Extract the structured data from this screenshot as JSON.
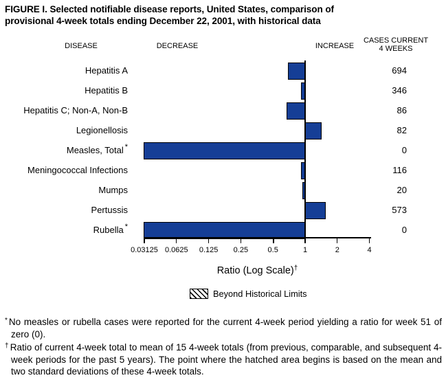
{
  "title": {
    "line1": "FIGURE I. Selected notifiable disease reports, United States, comparison of",
    "line2": "provisional 4-week totals ending December 22, 2001, with historical data"
  },
  "columns": {
    "disease": "DISEASE",
    "decrease": "DECREASE",
    "increase": "INCREASE",
    "cases_line1": "CASES CURRENT",
    "cases_line2": "4 WEEKS"
  },
  "chart_data": {
    "type": "bar",
    "orientation": "horizontal",
    "x_scale": "log2",
    "baseline_ratio": 1,
    "x_ticks": [
      0.03125,
      0.0625,
      0.125,
      0.25,
      0.5,
      1,
      2,
      4
    ],
    "xlim": [
      0.03125,
      4
    ],
    "xlabel": "Ratio (Log Scale)",
    "xlabel_superscript": "†",
    "bar_color": "#153e96",
    "rows": [
      {
        "disease": "Hepatitis A",
        "footnote_marker": "",
        "cases": "694",
        "ratio": 0.71
      },
      {
        "disease": "Hepatitis B",
        "footnote_marker": "",
        "cases": "346",
        "ratio": 0.93
      },
      {
        "disease": "Hepatitis C; Non-A, Non-B",
        "footnote_marker": "",
        "cases": "86",
        "ratio": 0.69
      },
      {
        "disease": "Legionellosis",
        "footnote_marker": "",
        "cases": "82",
        "ratio": 1.41
      },
      {
        "disease": "Measles, Total",
        "footnote_marker": "*",
        "cases": "0",
        "ratio": 0
      },
      {
        "disease": "Meningococcal Infections",
        "footnote_marker": "",
        "cases": "116",
        "ratio": 0.94
      },
      {
        "disease": "Mumps",
        "footnote_marker": "",
        "cases": "20",
        "ratio": 0.96
      },
      {
        "disease": "Pertussis",
        "footnote_marker": "",
        "cases": "573",
        "ratio": 1.54
      },
      {
        "disease": "Rubella",
        "footnote_marker": "*",
        "cases": "0",
        "ratio": 0
      }
    ]
  },
  "legend": {
    "swatch": "hatched-box",
    "label": "Beyond Historical Limits"
  },
  "footnotes": [
    {
      "marker": "*",
      "text": "No measles or rubella cases were reported for the current 4-week period yielding a ratio for week 51 of zero (0)."
    },
    {
      "marker": "†",
      "text": "Ratio of current 4-week total to mean of 15 4-week totals (from previous, comparable, and subsequent 4-week periods for the past 5 years). The point where the hatched area begins is based on the mean and two standard deviations of these 4-week totals."
    }
  ]
}
